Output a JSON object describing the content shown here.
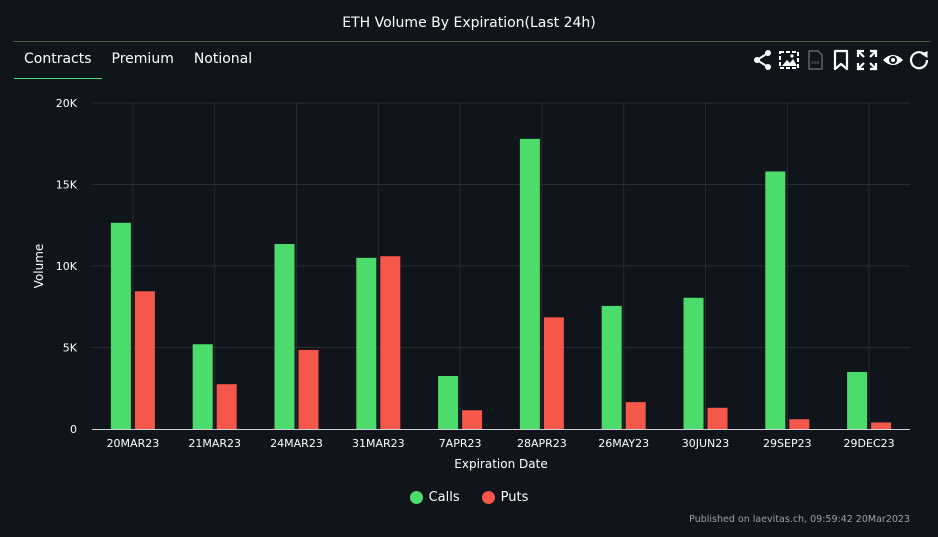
{
  "header": {
    "title": "ETH Volume By Expiration(Last 24h)"
  },
  "tabs": [
    {
      "label": "Contracts",
      "active": true
    },
    {
      "label": "Premium",
      "active": false
    },
    {
      "label": "Notional",
      "active": false
    }
  ],
  "toolbar": {
    "icons": [
      "share-icon",
      "image-download-icon",
      "csv-download-icon",
      "bookmark-icon",
      "fullscreen-icon",
      "eye-icon",
      "refresh-icon"
    ],
    "csv_label": "csv"
  },
  "chart_data": {
    "type": "bar",
    "title": "ETH Volume By Expiration(Last 24h)",
    "xlabel": "Expiration Date",
    "ylabel": "Volume",
    "ylim": [
      0,
      20000
    ],
    "yticks": [
      0,
      5000,
      10000,
      15000,
      20000
    ],
    "ytick_labels": [
      "0",
      "5K",
      "10K",
      "15K",
      "20K"
    ],
    "categories": [
      "20MAR23",
      "21MAR23",
      "24MAR23",
      "31MAR23",
      "7APR23",
      "28APR23",
      "26MAY23",
      "30JUN23",
      "29SEP23",
      "29DEC23"
    ],
    "series": [
      {
        "name": "Calls",
        "color": "#4cdc6c",
        "values": [
          12650,
          5200,
          11350,
          10500,
          3250,
          17800,
          7550,
          8050,
          15800,
          3500
        ]
      },
      {
        "name": "Puts",
        "color": "#f5574a",
        "values": [
          8450,
          2750,
          4850,
          10600,
          1150,
          6850,
          1650,
          1300,
          600,
          400
        ]
      }
    ],
    "grid": true,
    "legend": "bottom-center"
  },
  "footer": {
    "text": "Published on laevitas.ch, 09:59:42 20Mar2023"
  },
  "colors": {
    "background": "#10151b",
    "grid": "#262b30",
    "calls": "#4cdc6c",
    "puts": "#f5574a"
  }
}
